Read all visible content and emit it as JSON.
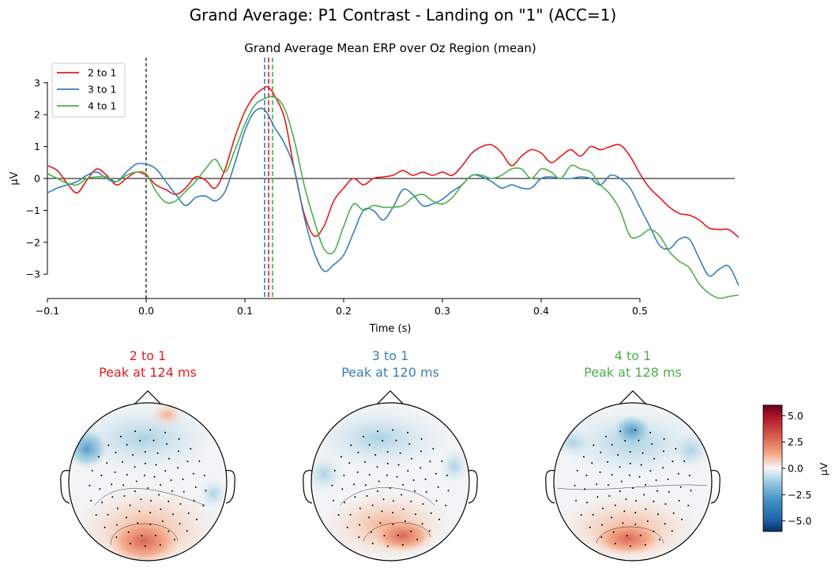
{
  "figure": {
    "suptitle": "Grand Average: P1 Contrast - Landing on \"1\" (ACC=1)"
  },
  "chart_data": [
    {
      "type": "line",
      "title": "Grand Average Mean ERP over Oz Region (mean)",
      "xlabel": "Time (s)",
      "ylabel": "µV",
      "xlim": [
        -0.1,
        0.6
      ],
      "ylim": [
        -3.8,
        3.8
      ],
      "xticks": [
        -0.1,
        0.0,
        0.1,
        0.2,
        0.3,
        0.4,
        0.5
      ],
      "xtick_labels": [
        "−0.1",
        "0.0",
        "0.1",
        "0.2",
        "0.3",
        "0.4",
        "0.5"
      ],
      "yticks": [
        -3,
        -2,
        -1,
        0,
        1,
        2,
        3
      ],
      "ytick_labels": [
        "−3",
        "−2",
        "−1",
        "0",
        "1",
        "2",
        "3"
      ],
      "legend_position": "top-left",
      "grid": false,
      "stimulus_onset": 0.0,
      "series": [
        {
          "name": "2 to 1",
          "color": "#e41a1c",
          "peak_time": 0.124,
          "x": [
            -0.1,
            -0.09,
            -0.08,
            -0.07,
            -0.06,
            -0.05,
            -0.04,
            -0.03,
            -0.02,
            -0.01,
            0.0,
            0.01,
            0.02,
            0.03,
            0.04,
            0.05,
            0.06,
            0.07,
            0.08,
            0.09,
            0.1,
            0.11,
            0.12,
            0.124,
            0.13,
            0.14,
            0.15,
            0.16,
            0.17,
            0.18,
            0.19,
            0.2,
            0.21,
            0.22,
            0.23,
            0.24,
            0.25,
            0.26,
            0.27,
            0.28,
            0.29,
            0.3,
            0.31,
            0.32,
            0.33,
            0.34,
            0.35,
            0.36,
            0.37,
            0.38,
            0.39,
            0.4,
            0.41,
            0.42,
            0.43,
            0.44,
            0.45,
            0.46,
            0.47,
            0.48,
            0.49,
            0.5,
            0.51,
            0.52,
            0.53,
            0.54,
            0.55,
            0.56,
            0.57,
            0.58,
            0.59,
            0.6
          ],
          "y": [
            0.4,
            0.25,
            -0.15,
            -0.45,
            -0.05,
            0.3,
            0.1,
            -0.2,
            0.0,
            0.2,
            0.1,
            -0.2,
            -0.35,
            -0.5,
            -0.3,
            0.05,
            -0.05,
            -0.3,
            0.3,
            1.3,
            2.1,
            2.6,
            2.85,
            2.85,
            2.6,
            1.9,
            0.3,
            -1.1,
            -1.8,
            -1.5,
            -0.7,
            -0.3,
            0.0,
            -0.2,
            0.0,
            0.05,
            0.1,
            0.25,
            0.1,
            0.2,
            0.1,
            0.2,
            0.1,
            0.4,
            0.8,
            1.0,
            1.05,
            0.8,
            0.4,
            0.7,
            0.9,
            0.8,
            0.5,
            0.7,
            0.9,
            0.7,
            1.0,
            0.9,
            1.0,
            1.05,
            0.7,
            0.15,
            -0.3,
            -0.6,
            -0.9,
            -1.1,
            -1.15,
            -1.3,
            -1.55,
            -1.6,
            -1.6,
            -1.85
          ]
        },
        {
          "name": "3 to 1",
          "color": "#377eb8",
          "peak_time": 0.12,
          "x": [
            -0.1,
            -0.09,
            -0.08,
            -0.07,
            -0.06,
            -0.05,
            -0.04,
            -0.03,
            -0.02,
            -0.01,
            0.0,
            0.01,
            0.02,
            0.03,
            0.04,
            0.05,
            0.06,
            0.07,
            0.08,
            0.09,
            0.1,
            0.11,
            0.12,
            0.13,
            0.14,
            0.15,
            0.16,
            0.17,
            0.18,
            0.19,
            0.2,
            0.21,
            0.22,
            0.23,
            0.24,
            0.25,
            0.26,
            0.27,
            0.28,
            0.29,
            0.3,
            0.31,
            0.32,
            0.33,
            0.34,
            0.35,
            0.36,
            0.37,
            0.38,
            0.39,
            0.4,
            0.41,
            0.42,
            0.43,
            0.44,
            0.45,
            0.46,
            0.47,
            0.48,
            0.49,
            0.5,
            0.51,
            0.52,
            0.53,
            0.54,
            0.55,
            0.56,
            0.57,
            0.58,
            0.59,
            0.6
          ],
          "y": [
            -0.45,
            -0.3,
            -0.2,
            -0.1,
            0.1,
            0.2,
            0.0,
            -0.1,
            0.2,
            0.45,
            0.45,
            0.3,
            -0.1,
            -0.5,
            -0.85,
            -0.6,
            -0.55,
            -0.7,
            -0.4,
            0.5,
            1.5,
            2.1,
            2.15,
            1.6,
            1.1,
            0.3,
            -1.2,
            -2.3,
            -2.9,
            -2.7,
            -2.4,
            -1.7,
            -1.0,
            -1.0,
            -1.3,
            -0.9,
            -0.35,
            -0.5,
            -0.85,
            -0.8,
            -0.65,
            -0.4,
            -0.2,
            0.1,
            0.05,
            -0.1,
            -0.3,
            -0.2,
            -0.3,
            -0.3,
            0.0,
            0.05,
            0.0,
            0.0,
            0.05,
            0.0,
            -0.2,
            0.1,
            0.0,
            -0.3,
            -0.9,
            -1.5,
            -2.1,
            -2.2,
            -1.9,
            -1.9,
            -2.5,
            -3.05,
            -2.85,
            -2.75,
            -3.35
          ]
        },
        {
          "name": "4 to 1",
          "color": "#4daf4a",
          "peak_time": 0.128,
          "x": [
            -0.1,
            -0.09,
            -0.08,
            -0.07,
            -0.06,
            -0.05,
            -0.04,
            -0.03,
            -0.02,
            -0.01,
            0.0,
            0.01,
            0.02,
            0.03,
            0.04,
            0.05,
            0.06,
            0.07,
            0.08,
            0.09,
            0.1,
            0.11,
            0.12,
            0.13,
            0.14,
            0.15,
            0.16,
            0.17,
            0.18,
            0.19,
            0.2,
            0.21,
            0.22,
            0.23,
            0.24,
            0.25,
            0.26,
            0.27,
            0.28,
            0.29,
            0.3,
            0.31,
            0.32,
            0.33,
            0.34,
            0.35,
            0.36,
            0.37,
            0.38,
            0.39,
            0.4,
            0.41,
            0.42,
            0.43,
            0.44,
            0.45,
            0.46,
            0.47,
            0.48,
            0.49,
            0.5,
            0.51,
            0.52,
            0.53,
            0.54,
            0.55,
            0.56,
            0.57,
            0.58,
            0.59,
            0.6
          ],
          "y": [
            0.15,
            0.0,
            -0.15,
            -0.2,
            0.0,
            0.05,
            0.05,
            -0.1,
            0.1,
            0.2,
            0.15,
            -0.4,
            -0.75,
            -0.7,
            -0.4,
            -0.1,
            0.3,
            0.6,
            0.2,
            0.9,
            1.7,
            2.3,
            2.5,
            2.55,
            2.2,
            1.2,
            -0.2,
            -1.3,
            -2.2,
            -2.3,
            -1.5,
            -0.8,
            -1.0,
            -0.85,
            -0.9,
            -0.9,
            -0.85,
            -0.6,
            -0.5,
            -0.7,
            -0.8,
            -0.6,
            -0.2,
            0.1,
            0.1,
            0.0,
            0.1,
            0.3,
            0.3,
            0.0,
            0.3,
            0.2,
            0.0,
            0.4,
            0.3,
            0.2,
            -0.2,
            -0.5,
            -1.0,
            -1.8,
            -1.8,
            -1.6,
            -1.8,
            -2.3,
            -2.6,
            -2.8,
            -3.3,
            -3.6,
            -3.75,
            -3.7,
            -3.65
          ]
        }
      ]
    }
  ],
  "topomaps": [
    {
      "title": "2 to 1",
      "subtitle": "Peak at 124 ms",
      "color": "#e41a1c"
    },
    {
      "title": "3 to 1",
      "subtitle": "Peak at 120 ms",
      "color": "#377eb8"
    },
    {
      "title": "4 to 1",
      "subtitle": "Peak at 128 ms",
      "color": "#4daf4a"
    }
  ],
  "colorbar": {
    "label": "µV",
    "colormap": "RdBu_r",
    "range": [
      -6.0,
      6.0
    ],
    "ticks": [
      5.0,
      2.5,
      0.0,
      -2.5,
      -5.0
    ],
    "tick_labels": [
      "5.0",
      "2.5",
      "0.0",
      "−2.5",
      "−5.0"
    ]
  }
}
